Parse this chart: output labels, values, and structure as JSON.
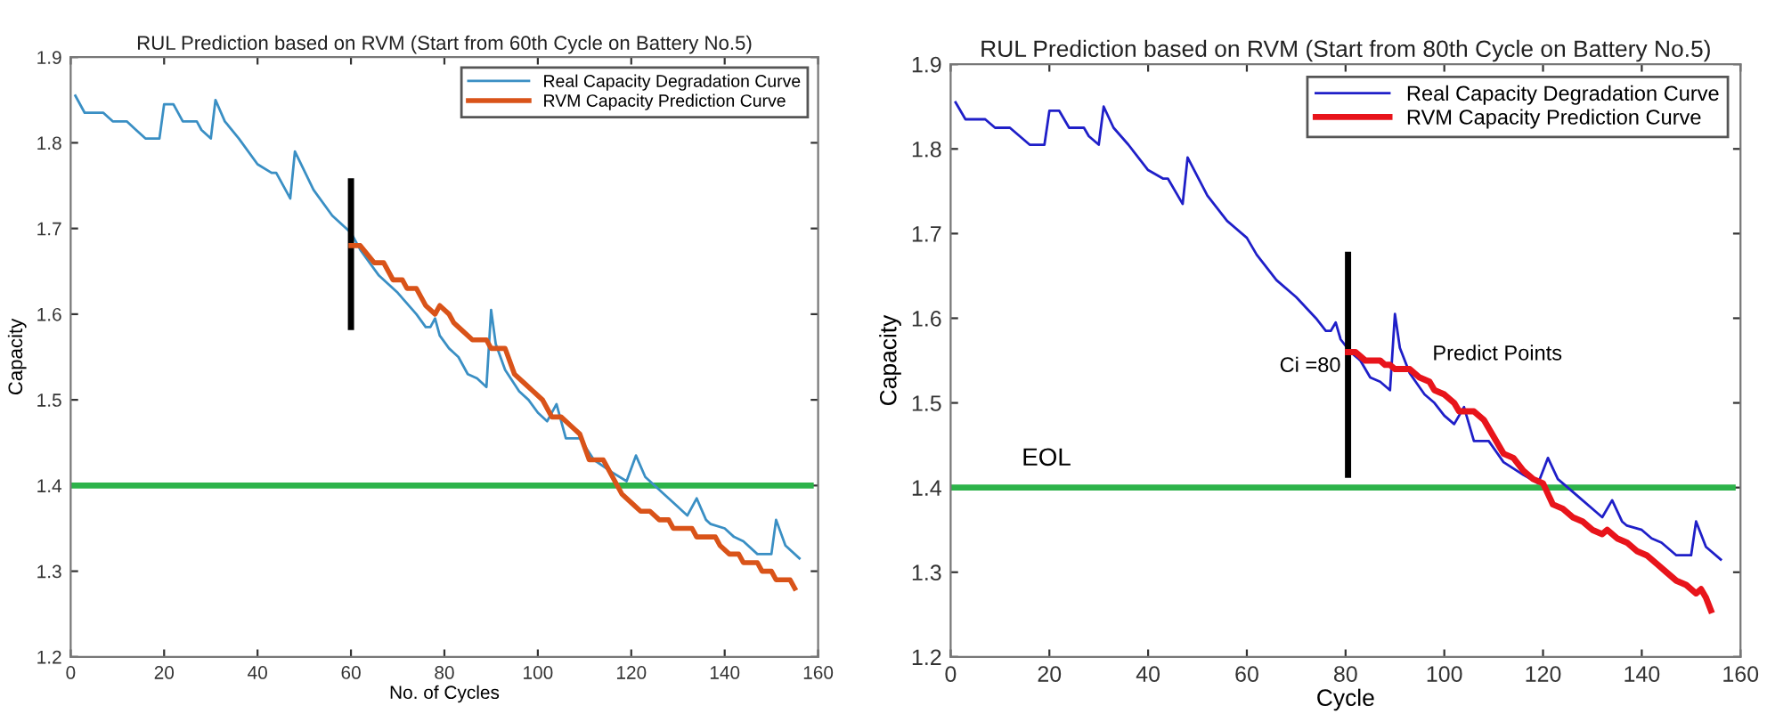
{
  "chart_data": [
    {
      "type": "line",
      "title": "RUL Prediction based on RVM (Start from 60th Cycle on Battery No.5)",
      "xlabel": "No. of Cycles",
      "ylabel": "Capacity",
      "xlim": [
        0,
        160
      ],
      "xticks": [
        0,
        20,
        40,
        60,
        80,
        100,
        120,
        140,
        160
      ],
      "ylim": [
        1.2,
        1.9
      ],
      "yticks": [
        1.2,
        1.3,
        1.4,
        1.5,
        1.6,
        1.7,
        1.8,
        1.9
      ],
      "grid": false,
      "legend": "top right",
      "series": [
        {
          "name": "Real Capacity Degradation Curve",
          "color": "#3a8fc4",
          "x": [
            1,
            3,
            7,
            9,
            12,
            14,
            16,
            19,
            20,
            22,
            24,
            27,
            28,
            30,
            31,
            33,
            36,
            40,
            43,
            44,
            47,
            48,
            52,
            56,
            60,
            62,
            66,
            70,
            74,
            76,
            77,
            78,
            79,
            81,
            83,
            85,
            87,
            89,
            90,
            91,
            93,
            96,
            98,
            100,
            102,
            104,
            106,
            109,
            112,
            116,
            119,
            121,
            123,
            127,
            131,
            132,
            134,
            136,
            137,
            140,
            142,
            144,
            147,
            150,
            151,
            153,
            156
          ],
          "values": [
            1.855,
            1.835,
            1.835,
            1.825,
            1.825,
            1.815,
            1.805,
            1.805,
            1.845,
            1.845,
            1.825,
            1.825,
            1.815,
            1.805,
            1.85,
            1.825,
            1.805,
            1.775,
            1.765,
            1.765,
            1.735,
            1.79,
            1.745,
            1.715,
            1.695,
            1.675,
            1.645,
            1.625,
            1.6,
            1.585,
            1.585,
            1.595,
            1.575,
            1.56,
            1.55,
            1.53,
            1.525,
            1.515,
            1.605,
            1.565,
            1.535,
            1.51,
            1.5,
            1.485,
            1.475,
            1.495,
            1.455,
            1.455,
            1.43,
            1.415,
            1.405,
            1.435,
            1.41,
            1.39,
            1.37,
            1.365,
            1.385,
            1.36,
            1.355,
            1.35,
            1.34,
            1.335,
            1.32,
            1.32,
            1.36,
            1.33,
            1.315
          ]
        },
        {
          "name": "RVM Capacity Prediction Curve",
          "color": "#d95319",
          "x": [
            60,
            62,
            65,
            67,
            69,
            71,
            72,
            74,
            76,
            78,
            79,
            81,
            82,
            84,
            86,
            89,
            90,
            93,
            95,
            97,
            99,
            101,
            103,
            105,
            107,
            109,
            111,
            114,
            116,
            118,
            120,
            122,
            124,
            126,
            128,
            129,
            133,
            134,
            138,
            139,
            141,
            143,
            144,
            147,
            148,
            150,
            151,
            154,
            155
          ],
          "values": [
            1.68,
            1.68,
            1.66,
            1.66,
            1.64,
            1.64,
            1.63,
            1.63,
            1.61,
            1.6,
            1.61,
            1.6,
            1.59,
            1.58,
            1.57,
            1.57,
            1.56,
            1.56,
            1.53,
            1.52,
            1.51,
            1.5,
            1.48,
            1.48,
            1.47,
            1.46,
            1.43,
            1.43,
            1.41,
            1.39,
            1.38,
            1.37,
            1.37,
            1.36,
            1.36,
            1.35,
            1.35,
            1.34,
            1.34,
            1.33,
            1.32,
            1.32,
            1.31,
            1.31,
            1.3,
            1.3,
            1.29,
            1.29,
            1.28
          ]
        },
        {
          "color": "#000000",
          "x": [
            60,
            60
          ],
          "values": [
            1.585,
            1.755
          ]
        }
      ],
      "ref_lines": [
        {
          "axis": "y",
          "value": 1.4,
          "color": "#2db34a"
        }
      ]
    },
    {
      "type": "line",
      "title": "RUL Prediction based on RVM (Start from 80th Cycle on Battery No.5)",
      "xlabel": "Cycle",
      "ylabel": "Capacity",
      "xlim": [
        0,
        160
      ],
      "xticks": [
        0,
        20,
        40,
        60,
        80,
        100,
        120,
        140,
        160
      ],
      "ylim": [
        1.2,
        1.9
      ],
      "yticks": [
        1.2,
        1.3,
        1.4,
        1.5,
        1.6,
        1.7,
        1.8,
        1.9
      ],
      "grid": false,
      "legend": "top right",
      "series": [
        {
          "name": "Real Capacity Degradation Curve",
          "color": "#1f1fc8",
          "x": [
            1,
            3,
            7,
            9,
            12,
            14,
            16,
            19,
            20,
            22,
            24,
            27,
            28,
            30,
            31,
            33,
            36,
            40,
            43,
            44,
            47,
            48,
            52,
            56,
            60,
            62,
            66,
            70,
            74,
            76,
            77,
            78,
            79,
            81,
            83,
            85,
            87,
            89,
            90,
            91,
            93,
            96,
            98,
            100,
            102,
            104,
            106,
            109,
            112,
            116,
            119,
            121,
            123,
            127,
            131,
            132,
            134,
            136,
            137,
            140,
            142,
            144,
            147,
            150,
            151,
            153,
            156
          ],
          "values": [
            1.855,
            1.835,
            1.835,
            1.825,
            1.825,
            1.815,
            1.805,
            1.805,
            1.845,
            1.845,
            1.825,
            1.825,
            1.815,
            1.805,
            1.85,
            1.825,
            1.805,
            1.775,
            1.765,
            1.765,
            1.735,
            1.79,
            1.745,
            1.715,
            1.695,
            1.675,
            1.645,
            1.625,
            1.6,
            1.585,
            1.585,
            1.595,
            1.575,
            1.56,
            1.55,
            1.53,
            1.525,
            1.515,
            1.605,
            1.565,
            1.535,
            1.51,
            1.5,
            1.485,
            1.475,
            1.495,
            1.455,
            1.455,
            1.43,
            1.415,
            1.405,
            1.435,
            1.41,
            1.39,
            1.37,
            1.365,
            1.385,
            1.36,
            1.355,
            1.35,
            1.34,
            1.335,
            1.32,
            1.32,
            1.36,
            1.33,
            1.315
          ]
        },
        {
          "name": "RVM Capacity Prediction Curve",
          "color": "#e8141b",
          "x": [
            80.5,
            82,
            84,
            87,
            88,
            89,
            90,
            93,
            95,
            97,
            98,
            100,
            102,
            103,
            106,
            108,
            110,
            112,
            114,
            116,
            118,
            120,
            122,
            124,
            126,
            128,
            130,
            132,
            133,
            135,
            137,
            139,
            141,
            143,
            145,
            147,
            149,
            151,
            152,
            153,
            154
          ],
          "values": [
            1.56,
            1.56,
            1.55,
            1.55,
            1.545,
            1.545,
            1.54,
            1.54,
            1.53,
            1.525,
            1.515,
            1.51,
            1.5,
            1.49,
            1.49,
            1.48,
            1.46,
            1.44,
            1.435,
            1.42,
            1.41,
            1.405,
            1.38,
            1.375,
            1.365,
            1.36,
            1.35,
            1.345,
            1.35,
            1.34,
            1.335,
            1.325,
            1.32,
            1.31,
            1.3,
            1.29,
            1.285,
            1.275,
            1.28,
            1.27,
            1.255
          ]
        },
        {
          "color": "#000000",
          "x": [
            80.5,
            80.5
          ],
          "values": [
            1.415,
            1.675
          ]
        }
      ],
      "ref_lines": [
        {
          "axis": "y",
          "value": 1.4,
          "color": "#2db34a",
          "label": "EOL"
        }
      ],
      "annotations": [
        "Ci =80",
        "Predict Points"
      ]
    }
  ]
}
